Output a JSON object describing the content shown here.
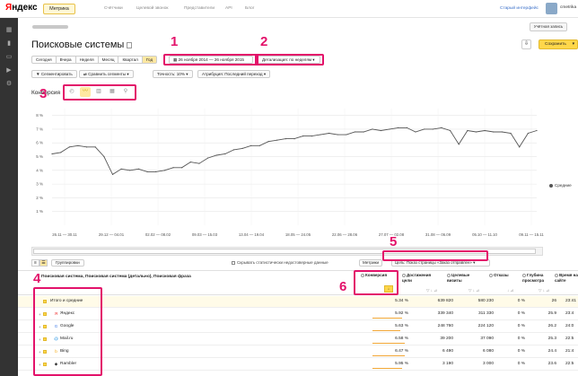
{
  "topbar": {
    "logo_first": "Я",
    "logo_rest": "ндекс",
    "product": "Метрика",
    "nav": [
      "Счётчики",
      "Целевой звонок",
      "Представители",
      "API",
      "Блог"
    ],
    "old_interface": "Старый интерфейс",
    "user": "cmetrika"
  },
  "header": {
    "counter_btn": "Учётная запись",
    "title": "Поисковые системы",
    "save": "Сохранить"
  },
  "toolbar": {
    "periods": [
      "Сегодня",
      "Вчера",
      "Неделя",
      "Месяц",
      "Квартал",
      "Год"
    ],
    "active_period": "Год",
    "date_range": "26 ноября 2014 — 26 ноября 2015",
    "detail": "Детализация: по неделям",
    "segment": "Сегментировать",
    "compare": "Сравнить сегменты",
    "accuracy": "Точность: 10%",
    "attribution": "Атрибуция: Последний переход"
  },
  "chart_title": "Конверсия",
  "chart_data": {
    "type": "line",
    "y_ticks": [
      "8 %",
      "7 %",
      "6 %",
      "5 %",
      "4 %",
      "3 %",
      "2 %",
      "1 %"
    ],
    "ylim": [
      0,
      8.5
    ],
    "x_labels": [
      "26.11 — 30.11",
      "29.12 — 04.01",
      "02.02 — 08.02",
      "09.03 — 15.03",
      "13.04 — 19.04",
      "18.05 — 24.05",
      "22.06 — 28.06",
      "27.07 — 02.08",
      "31.08 — 06.09",
      "05.10 — 11.10",
      "09.11 — 15.11"
    ],
    "series": [
      {
        "name": "Средние",
        "color": "#555555",
        "values": [
          5.2,
          5.3,
          5.7,
          5.8,
          5.7,
          5.7,
          5.0,
          3.7,
          4.1,
          4.0,
          4.1,
          3.9,
          3.9,
          4.0,
          4.2,
          4.2,
          4.6,
          4.5,
          4.9,
          5.1,
          5.2,
          5.5,
          5.6,
          5.8,
          5.8,
          6.1,
          6.2,
          6.3,
          6.3,
          6.5,
          6.5,
          6.6,
          6.7,
          6.6,
          6.6,
          6.8,
          6.8,
          7.0,
          6.9,
          7.0,
          7.1,
          7.1,
          6.8,
          7.0,
          7.0,
          7.1,
          6.9,
          5.9,
          6.9,
          6.8,
          6.9,
          6.8,
          6.8,
          6.7,
          5.7,
          6.7,
          6.9
        ]
      }
    ]
  },
  "legend": "Средние",
  "table_toolbar": {
    "group": "Группировки",
    "hide_unreliable": "Скрывать статистически недостоверные данные",
    "metrics": "Метрики",
    "goal": "Цель: Показ страницы «Заказ отправлен»"
  },
  "table": {
    "dimension_header": "Поисковая система, Поисковая система (детально), Поисковая фраза",
    "columns": [
      "Конверсия",
      "Достижения цели",
      "Целевые визиты",
      "Отказы",
      "Глубина просмотра",
      "Время на сайте"
    ],
    "total_label": "Итого и средние",
    "total": [
      "5.34 %",
      "639 820",
      "580 230",
      "0 %",
      "26",
      "23:41"
    ],
    "rows": [
      {
        "name": "Яндекс",
        "icon": "Я",
        "icon_color": "#e22",
        "values": [
          "5.92 %",
          "339 340",
          "311 330",
          "0 %",
          "25.9",
          "23:4"
        ]
      },
      {
        "name": "Google",
        "icon": "G",
        "icon_color": "#3b78e7",
        "values": [
          "5.63 %",
          "248 760",
          "224 120",
          "0 %",
          "26.2",
          "24:0"
        ]
      },
      {
        "name": "Mail.ru",
        "icon": "@",
        "icon_color": "#168de2",
        "values": [
          "6.58 %",
          "39 200",
          "37 090",
          "0 %",
          "25.3",
          "22:5"
        ]
      },
      {
        "name": "Bing",
        "icon": "b",
        "icon_color": "#f4a300",
        "values": [
          "6.47 %",
          "6 490",
          "6 080",
          "0 %",
          "24.4",
          "21:4"
        ]
      },
      {
        "name": "Rambler",
        "icon": "◆",
        "icon_color": "#333",
        "values": [
          "5.95 %",
          "3 190",
          "3 000",
          "0 %",
          "23.6",
          "22:5"
        ]
      }
    ]
  },
  "annotations": [
    "1",
    "2",
    "3",
    "4",
    "5",
    "6"
  ]
}
